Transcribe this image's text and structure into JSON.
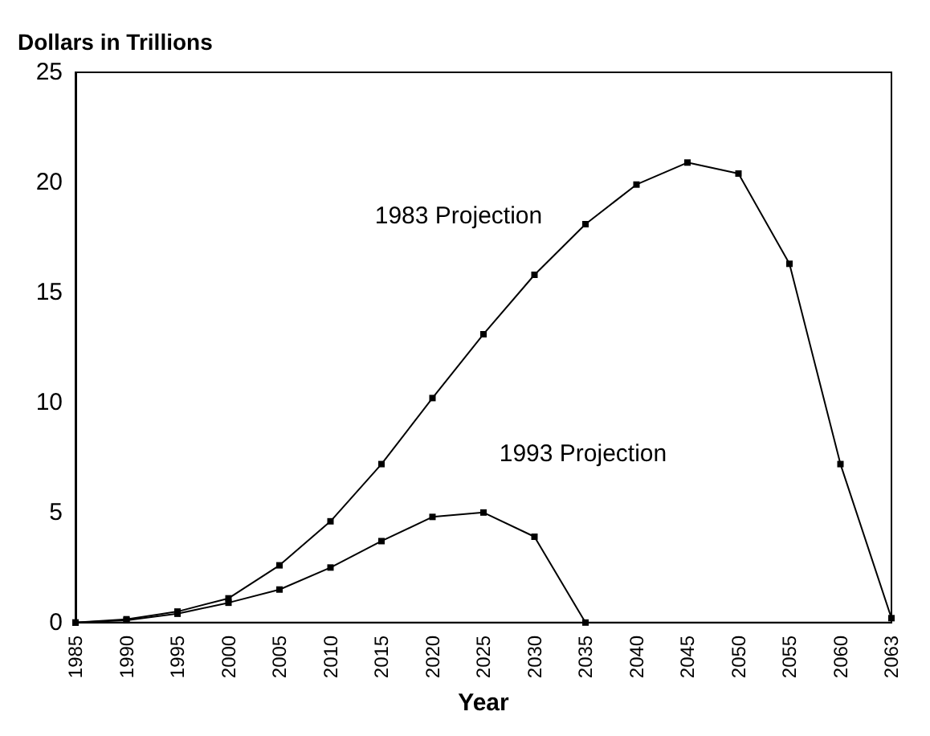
{
  "chart_data": {
    "type": "line",
    "ylabel": "Dollars in Trillions",
    "xlabel": "Year",
    "categories": [
      "1985",
      "1990",
      "1995",
      "2000",
      "2005",
      "2010",
      "2015",
      "2020",
      "2025",
      "2030",
      "2035",
      "2040",
      "2045",
      "2050",
      "2055",
      "2060",
      "2063"
    ],
    "series": [
      {
        "name": "1983 Projection",
        "color": "#000000",
        "values": [
          0,
          0.15,
          0.5,
          1.1,
          2.6,
          4.6,
          7.2,
          10.2,
          13.1,
          15.8,
          18.1,
          19.9,
          20.9,
          20.4,
          16.3,
          7.2,
          0.2
        ]
      },
      {
        "name": "1993 Projection",
        "color": "#000000",
        "values": [
          0,
          0.1,
          0.4,
          0.9,
          1.5,
          2.5,
          3.7,
          4.8,
          5.0,
          3.9,
          0,
          null,
          null,
          null,
          null,
          null,
          null
        ]
      }
    ],
    "ylim": [
      0,
      25
    ],
    "yticks": [
      0,
      5,
      10,
      15,
      20,
      25
    ],
    "grid": false,
    "legend": false,
    "marker": "square",
    "line_style": "solid"
  }
}
